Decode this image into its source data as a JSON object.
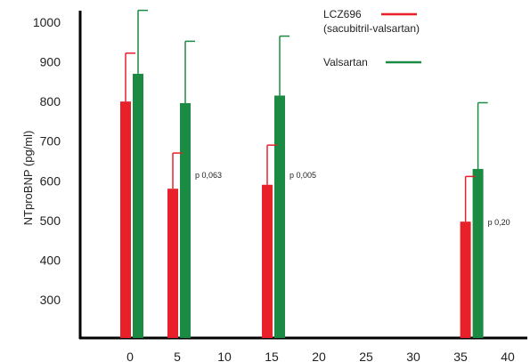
{
  "chart_data": {
    "type": "bar",
    "title": "",
    "xlabel": "",
    "ylabel": "NTproBNP (pg/ml)",
    "xlim": [
      -3,
      40
    ],
    "ylim": [
      200,
      1050
    ],
    "x_ticks": [
      0,
      5,
      10,
      15,
      20,
      25,
      30,
      35,
      40
    ],
    "y_ticks": [
      300,
      400,
      500,
      600,
      700,
      800,
      900,
      1000
    ],
    "grid": false,
    "legend_position": "top-right",
    "series": [
      {
        "name": "LCZ696 (sacubitril-valsartan)",
        "legend_lines": [
          "LCZ696",
          "(sacubitril-valsartan)"
        ],
        "color": "#e8202a",
        "x": [
          0,
          5,
          15,
          36
        ],
        "values": [
          800,
          580,
          590,
          497
        ],
        "error_upper": [
          922,
          670,
          690,
          611
        ]
      },
      {
        "name": "Valsartan",
        "legend_lines": [
          "Valsartan"
        ],
        "color": "#1b8a43",
        "x": [
          0,
          5,
          15,
          36
        ],
        "values": [
          870,
          796,
          815,
          630
        ],
        "error_upper": [
          1030,
          952,
          965,
          797
        ]
      }
    ],
    "annotations": [
      {
        "text": "p 0,063",
        "x": 5
      },
      {
        "text": "p 0,005",
        "x": 15
      },
      {
        "text": "p 0,20",
        "x": 36
      }
    ]
  }
}
